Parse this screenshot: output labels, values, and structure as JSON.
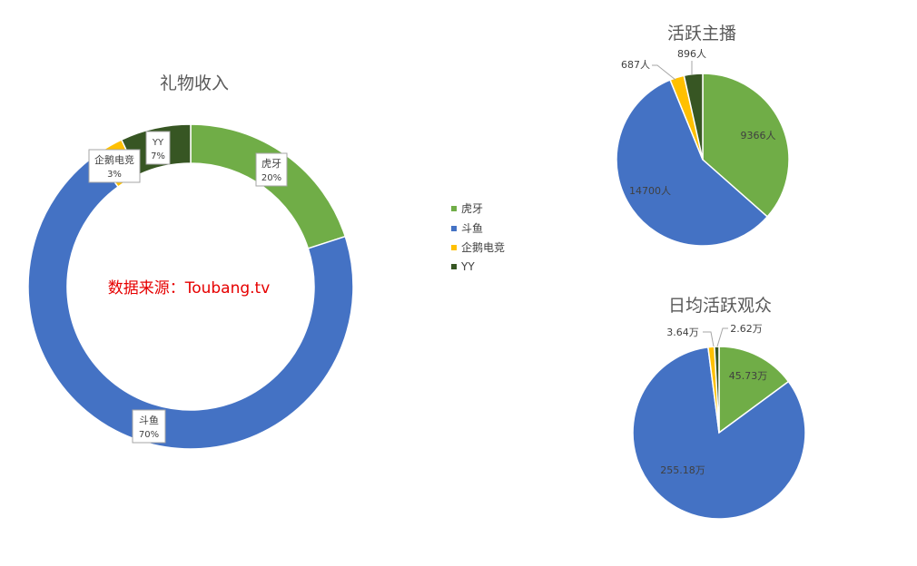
{
  "source_note": "数据来源：Toubang.tv",
  "legend": [
    {
      "name": "虎牙",
      "color": "#70ad47"
    },
    {
      "name": "斗鱼",
      "color": "#4472c4"
    },
    {
      "name": "企鹅电竞",
      "color": "#ffc000"
    },
    {
      "name": "YY",
      "color": "#375623"
    }
  ],
  "chart_data": [
    {
      "type": "doughnut",
      "title": "礼物收入",
      "categories": [
        "虎牙",
        "斗鱼",
        "企鹅电竞",
        "YY"
      ],
      "values": [
        20,
        70,
        3,
        7
      ],
      "labels": [
        "虎牙\n20%",
        "斗鱼\n70%",
        "企鹅电竞\n3%",
        "YY\n7%"
      ],
      "colors": [
        "#70ad47",
        "#4472c4",
        "#ffc000",
        "#375623"
      ]
    },
    {
      "type": "pie",
      "title": "活跃主播",
      "categories": [
        "虎牙",
        "斗鱼",
        "企鹅电竞",
        "YY"
      ],
      "values": [
        9366,
        14700,
        687,
        896
      ],
      "labels": [
        "9366人",
        "14700人",
        "687人",
        "896人"
      ],
      "colors": [
        "#70ad47",
        "#4472c4",
        "#ffc000",
        "#375623"
      ]
    },
    {
      "type": "pie",
      "title": "日均活跃观众",
      "categories": [
        "虎牙",
        "斗鱼",
        "企鹅电竞",
        "YY"
      ],
      "values": [
        45.73,
        255.18,
        3.64,
        2.62
      ],
      "labels": [
        "45.73万",
        "255.18万",
        "3.64万",
        "2.62万"
      ],
      "colors": [
        "#70ad47",
        "#4472c4",
        "#ffc000",
        "#375623"
      ]
    }
  ]
}
